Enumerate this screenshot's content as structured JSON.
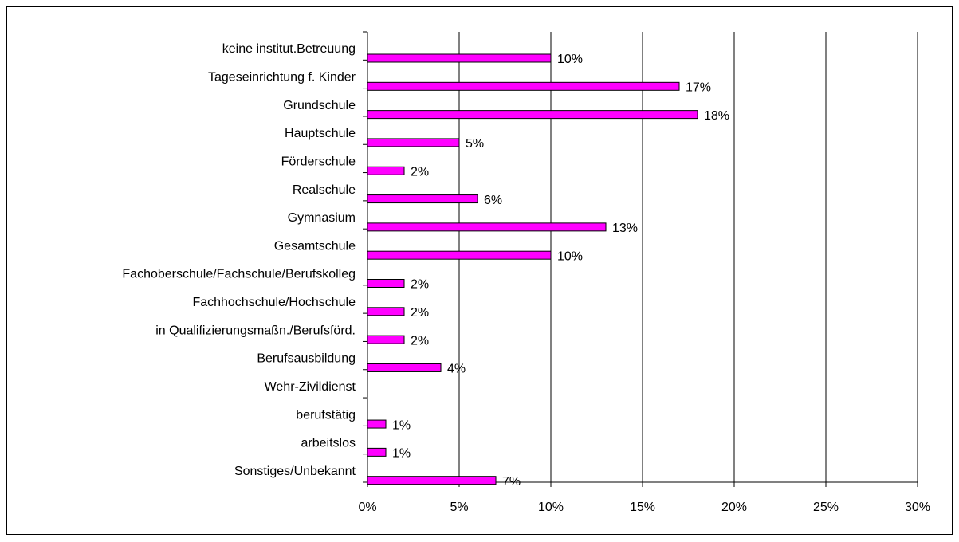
{
  "chart_data": {
    "type": "hbar",
    "categories": [
      "keine institut.Betreuung",
      "Tageseinrichtung f. Kinder",
      "Grundschule",
      "Hauptschule",
      "Förderschule",
      "Realschule",
      "Gymnasium",
      "Gesamtschule",
      "Fachoberschule/Fachschule/Berufskolleg",
      "Fachhochschule/Hochschule",
      "in Qualifizierungsmaßn./Berufsförd.",
      "Berufsausbildung",
      "Wehr-Zivildienst",
      "berufstätig",
      "arbeitslos",
      "Sonstiges/Unbekannt"
    ],
    "values": [
      10,
      17,
      18,
      5,
      2,
      6,
      13,
      10,
      2,
      2,
      2,
      4,
      null,
      1,
      1,
      7
    ],
    "value_labels": [
      "10%",
      "17%",
      "18%",
      "5%",
      "2%",
      "6%",
      "13%",
      "10%",
      "2%",
      "2%",
      "2%",
      "4%",
      null,
      "1%",
      "1%",
      "7%"
    ],
    "color": "#ff00ff",
    "xlim": [
      0,
      30
    ],
    "xticks": [
      {
        "value": 0,
        "label": "0%"
      },
      {
        "value": 5,
        "label": "5%"
      },
      {
        "value": 10,
        "label": "10%"
      },
      {
        "value": 15,
        "label": "15%"
      },
      {
        "value": 20,
        "label": "20%"
      },
      {
        "value": 25,
        "label": "25%"
      },
      {
        "value": 30,
        "label": "30%"
      }
    ],
    "grid": true
  }
}
